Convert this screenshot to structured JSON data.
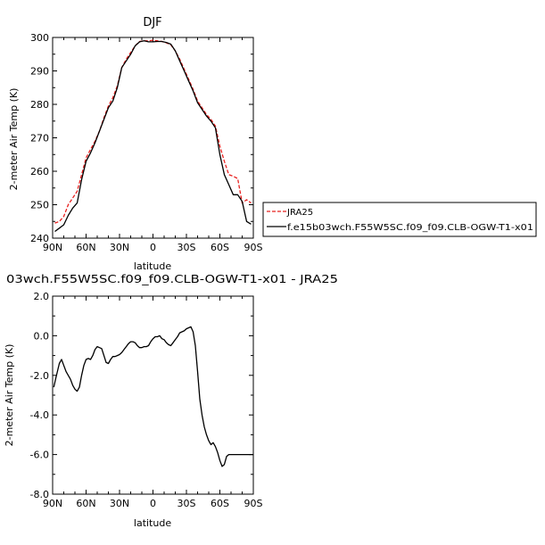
{
  "chart_data": [
    {
      "type": "line",
      "title": "DJF",
      "xlabel": "latitude",
      "ylabel": "2-meter Air Temp (K)",
      "xlim": [
        90,
        -90
      ],
      "ylim": [
        240,
        300
      ],
      "xticks": [
        {
          "value": 90,
          "label": "90N"
        },
        {
          "value": 60,
          "label": "60N"
        },
        {
          "value": 30,
          "label": "30N"
        },
        {
          "value": 0,
          "label": "0"
        },
        {
          "value": -30,
          "label": "30S"
        },
        {
          "value": -60,
          "label": "60S"
        },
        {
          "value": -90,
          "label": "90S"
        }
      ],
      "yticks": [
        {
          "value": 240,
          "label": "240"
        },
        {
          "value": 250,
          "label": "250"
        },
        {
          "value": 260,
          "label": "260"
        },
        {
          "value": 270,
          "label": "270"
        },
        {
          "value": 280,
          "label": "280"
        },
        {
          "value": 290,
          "label": "290"
        },
        {
          "value": 300,
          "label": "300"
        }
      ],
      "legend": {
        "placement": "right",
        "entries": [
          "JRA25",
          "f.e15b03wch.F55W5SC.f09_f09.CLB-OGW-T1-x01"
        ]
      },
      "x": [
        88,
        84,
        80,
        76,
        72,
        68,
        64,
        60,
        56,
        52,
        48,
        44,
        40,
        36,
        32,
        28,
        24,
        20,
        16,
        12,
        8,
        4,
        0,
        -4,
        -8,
        -12,
        -16,
        -20,
        -24,
        -28,
        -32,
        -36,
        -40,
        -44,
        -48,
        -52,
        -56,
        -60,
        -64,
        -68,
        -72,
        -76,
        -80,
        -84,
        -88
      ],
      "series": [
        {
          "name": "JRA25",
          "color": "#e8211f",
          "dash": "dashed",
          "values": [
            244.5,
            245.0,
            246.5,
            250.0,
            252.0,
            254.0,
            259.0,
            264.0,
            266.5,
            269.0,
            272.0,
            276.0,
            279.5,
            282.0,
            285.5,
            291.0,
            293.5,
            295.5,
            297.5,
            298.8,
            299.0,
            299.0,
            299.2,
            299.0,
            298.8,
            298.4,
            297.8,
            296.0,
            293.5,
            290.5,
            287.5,
            284.5,
            281.0,
            279.0,
            277.0,
            275.5,
            273.5,
            267.5,
            263.0,
            259.0,
            258.5,
            257.8,
            250.5,
            251.5,
            250.5
          ]
        },
        {
          "name": "f.e15b03wch.F55W5SC.f09_f09.CLB-OGW-T1-x01",
          "color": "#000000",
          "dash": "solid",
          "values": [
            242.0,
            243.0,
            244.0,
            246.8,
            249.0,
            250.5,
            257.5,
            263.0,
            265.5,
            268.5,
            272.0,
            275.5,
            279.0,
            281.0,
            285.0,
            291.0,
            293.0,
            295.0,
            297.5,
            298.7,
            299.0,
            298.7,
            298.7,
            298.8,
            298.8,
            298.5,
            298.0,
            296.0,
            293.0,
            290.0,
            287.0,
            284.0,
            280.5,
            278.5,
            276.5,
            275.0,
            273.0,
            265.0,
            259.0,
            256.0,
            253.0,
            253.0,
            251.0,
            245.0,
            244.2
          ]
        }
      ]
    },
    {
      "type": "line",
      "title": "03wch.F55W5SC.f09_f09.CLB-OGW-T1-x01 - JRA25",
      "xlabel": "latitude",
      "ylabel": "2-meter Air Temp (K)",
      "xlim": [
        90,
        -90
      ],
      "ylim": [
        -8.0,
        2.0
      ],
      "xticks": [
        {
          "value": 90,
          "label": "90N"
        },
        {
          "value": 60,
          "label": "60N"
        },
        {
          "value": 30,
          "label": "30N"
        },
        {
          "value": 0,
          "label": "0"
        },
        {
          "value": -30,
          "label": "30S"
        },
        {
          "value": -60,
          "label": "60S"
        },
        {
          "value": -90,
          "label": "90S"
        }
      ],
      "yticks": [
        {
          "value": -8.0,
          "label": "-8.0"
        },
        {
          "value": -6.0,
          "label": "-6.0"
        },
        {
          "value": -4.0,
          "label": "-4.0"
        },
        {
          "value": -2.0,
          "label": "-2.0"
        },
        {
          "value": 0.0,
          "label": "0.0"
        },
        {
          "value": 2.0,
          "label": "2.0"
        }
      ],
      "x": [
        89,
        87,
        84,
        82,
        80,
        78,
        76,
        74,
        72,
        70,
        68,
        66,
        64,
        62,
        60,
        58,
        56,
        54,
        52,
        50,
        48,
        46,
        44,
        42,
        40,
        38,
        36,
        34,
        32,
        30,
        28,
        26,
        24,
        22,
        20,
        18,
        16,
        14,
        12,
        10,
        8,
        6,
        4,
        2,
        0,
        -2,
        -4,
        -6,
        -8,
        -10,
        -12,
        -14,
        -16,
        -18,
        -20,
        -22,
        -24,
        -26,
        -28,
        -30,
        -32,
        -34,
        -36,
        -38,
        -40,
        -42,
        -44,
        -46,
        -48,
        -50,
        -52,
        -54,
        -56,
        -58,
        -60,
        -62,
        -64,
        -66,
        -68,
        -70,
        -72,
        -74,
        -76,
        -78,
        -80,
        -82,
        -84,
        -86,
        -88,
        -90
      ],
      "series": [
        {
          "name": "",
          "color": "#000000",
          "dash": "solid",
          "values": [
            -2.6,
            -2.1,
            -1.4,
            -1.2,
            -1.5,
            -1.8,
            -2.0,
            -2.2,
            -2.5,
            -2.7,
            -2.8,
            -2.6,
            -2.0,
            -1.5,
            -1.2,
            -1.15,
            -1.2,
            -1.0,
            -0.7,
            -0.55,
            -0.6,
            -0.65,
            -1.0,
            -1.35,
            -1.4,
            -1.2,
            -1.05,
            -1.05,
            -1.0,
            -0.95,
            -0.85,
            -0.7,
            -0.55,
            -0.4,
            -0.3,
            -0.3,
            -0.35,
            -0.5,
            -0.6,
            -0.6,
            -0.55,
            -0.55,
            -0.5,
            -0.3,
            -0.15,
            -0.05,
            -0.05,
            0.0,
            -0.15,
            -0.2,
            -0.35,
            -0.45,
            -0.5,
            -0.35,
            -0.2,
            -0.05,
            0.15,
            0.2,
            0.25,
            0.35,
            0.4,
            0.45,
            0.2,
            -0.5,
            -1.8,
            -3.2,
            -4.0,
            -4.6,
            -5.0,
            -5.3,
            -5.5,
            -5.4,
            -5.6,
            -5.9,
            -6.3,
            -6.6,
            -6.5,
            -6.1,
            -6.0,
            -6.0,
            -6.0,
            -6.0,
            -6.0,
            -6.0,
            -6.0,
            -6.0,
            -6.0,
            -6.0,
            -6.0,
            -6.0
          ]
        }
      ]
    }
  ]
}
